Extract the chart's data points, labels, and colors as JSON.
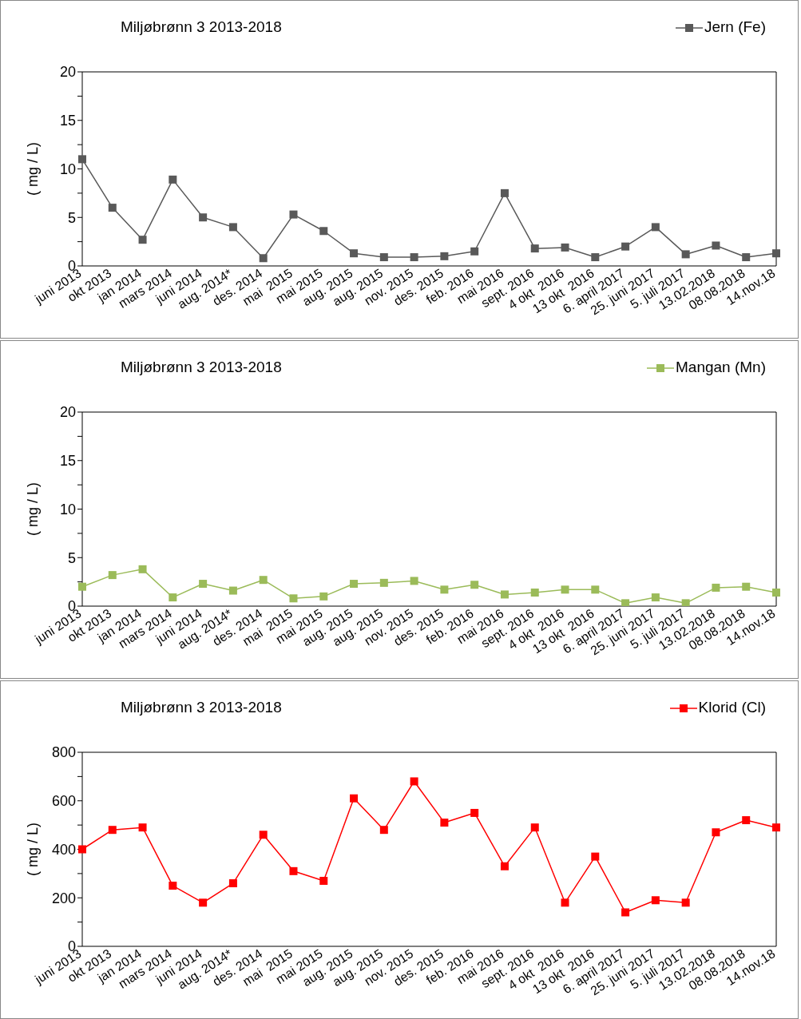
{
  "chart_data": [
    {
      "type": "line",
      "title": "Miljøbrønn 3 2013-2018",
      "ylabel": "( mg / L)",
      "categories": [
        "juni 2013",
        "okt 2013",
        "jan 2014",
        "mars 2014",
        "juni 2014",
        "aug. 2014*",
        "des. 2014",
        "mai  2015",
        "mai 2015",
        "aug. 2015",
        "aug. 2015",
        "nov. 2015",
        "des. 2015",
        "feb. 2016",
        "mai 2016",
        "sept. 2016",
        "4 okt  2016",
        "13 okt  2016",
        "6. april 2017",
        "25. juni 2017",
        "5. juli 2017",
        "13.02.2018",
        "08.08.2018",
        "14.nov.18"
      ],
      "series": [
        {
          "name": "Jern (Fe)",
          "color": "#595959",
          "values": [
            11,
            6,
            2.7,
            8.9,
            5,
            4,
            0.8,
            5.3,
            3.6,
            1.3,
            0.9,
            0.9,
            1,
            1.5,
            7.5,
            1.8,
            1.9,
            0.9,
            2,
            4,
            1.2,
            2.1,
            0.9,
            1.3
          ]
        }
      ],
      "ylim": [
        0,
        20
      ],
      "yticks": [
        0,
        {
          "value": 2.5,
          "label": null
        },
        5,
        {
          "value": 7.5,
          "label": null
        },
        10,
        {
          "value": 12.5,
          "label": null
        },
        15,
        {
          "value": 17.5,
          "label": null
        },
        20
      ],
      "grid": false,
      "legend": "top right",
      "marker": "square",
      "line_style": "solid"
    },
    {
      "type": "line",
      "title": "Miljøbrønn 3 2013-2018",
      "ylabel": "( mg / L)",
      "categories": [
        "juni 2013",
        "okt 2013",
        "jan 2014",
        "mars 2014",
        "juni 2014",
        "aug. 2014*",
        "des. 2014",
        "mai  2015",
        "mai 2015",
        "aug. 2015",
        "aug. 2015",
        "nov. 2015",
        "des. 2015",
        "feb. 2016",
        "mai 2016",
        "sept. 2016",
        "4 okt  2016",
        "13 okt  2016",
        "6. april 2017",
        "25. juni 2017",
        "5. juli 2017",
        "13.02.2018",
        "08.08.2018",
        "14.nov.18"
      ],
      "series": [
        {
          "name": "Mangan (Mn)",
          "color": "#9bbb59",
          "values": [
            2,
            3.2,
            3.8,
            0.9,
            2.3,
            1.6,
            2.7,
            0.8,
            1,
            2.3,
            2.4,
            2.6,
            1.7,
            2.2,
            1.2,
            1.4,
            1.7,
            1.7,
            0.3,
            0.9,
            0.3,
            1.9,
            2,
            1.4
          ]
        }
      ],
      "ylim": [
        0,
        20
      ],
      "yticks": [
        0,
        {
          "value": 2.5,
          "label": null
        },
        5,
        {
          "value": 7.5,
          "label": null
        },
        10,
        {
          "value": 12.5,
          "label": null
        },
        15,
        {
          "value": 17.5,
          "label": null
        },
        20
      ],
      "grid": false,
      "legend": "top right",
      "marker": "square",
      "line_style": "solid"
    },
    {
      "type": "line",
      "title": "Miljøbrønn 3 2013-2018",
      "ylabel": "( mg / L)",
      "categories": [
        "juni 2013",
        "okt 2013",
        "jan 2014",
        "mars 2014",
        "juni 2014",
        "aug. 2014*",
        "des. 2014",
        "mai  2015",
        "mai 2015",
        "aug. 2015",
        "aug. 2015",
        "nov. 2015",
        "des. 2015",
        "feb. 2016",
        "mai 2016",
        "sept. 2016",
        "4 okt  2016",
        "13 okt  2016",
        "6. april 2017",
        "25. juni 2017",
        "5. juli 2017",
        "13.02.2018",
        "08.08.2018",
        "14.nov.18"
      ],
      "series": [
        {
          "name": "Klorid (Cl)",
          "color": "#ff0000",
          "values": [
            400,
            480,
            490,
            250,
            180,
            260,
            460,
            310,
            270,
            610,
            480,
            680,
            510,
            550,
            330,
            490,
            180,
            370,
            140,
            190,
            180,
            470,
            520,
            490
          ]
        }
      ],
      "ylim": [
        0,
        800
      ],
      "yticks": [
        0,
        {
          "value": 100,
          "label": null
        },
        200,
        {
          "value": 300,
          "label": null
        },
        400,
        {
          "value": 500,
          "label": null
        },
        600,
        {
          "value": 700,
          "label": null
        },
        800
      ],
      "grid": false,
      "legend": "top right",
      "marker": "square",
      "line_style": "solid"
    }
  ]
}
